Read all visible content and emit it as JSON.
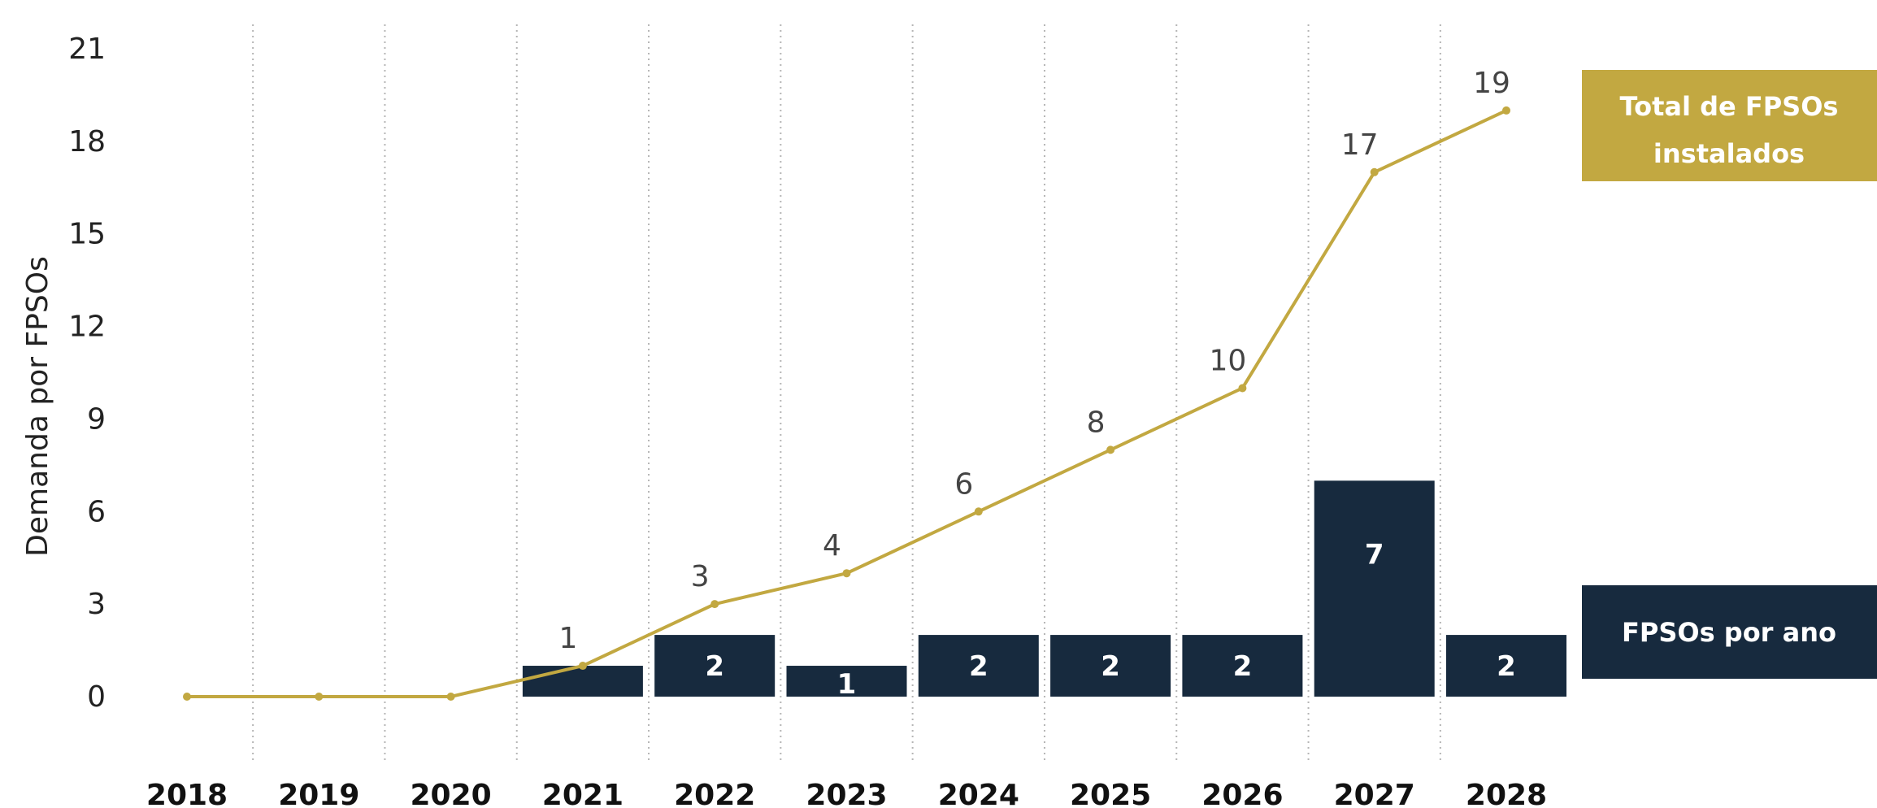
{
  "chart_data": {
    "type": "bar",
    "categories": [
      "2018",
      "2019",
      "2020",
      "2021",
      "2022",
      "2023",
      "2024",
      "2025",
      "2026",
      "2027",
      "2028"
    ],
    "ylabel": "Demanda por FPSOs",
    "ylim": [
      -2,
      21
    ],
    "yticks": [
      0,
      3,
      6,
      9,
      12,
      15,
      18,
      21
    ],
    "grid": "vertical-dotted",
    "series": [
      {
        "type": "bar",
        "name": "FPSOs por ano",
        "color": "#172a3e",
        "values": [
          0,
          0,
          0,
          1,
          2,
          1,
          2,
          2,
          2,
          7,
          2
        ],
        "labels": [
          "",
          "",
          "",
          "",
          "2",
          "1",
          "2",
          "2",
          "2",
          "7",
          "2"
        ]
      },
      {
        "type": "line",
        "name": "Total de FPSOs instalados",
        "color": "#c2a841",
        "values": [
          0,
          0,
          0,
          1,
          3,
          4,
          6,
          8,
          10,
          17,
          19
        ],
        "labels": [
          "",
          "",
          "",
          "1",
          "3",
          "4",
          "6",
          "8",
          "10",
          "17",
          "19"
        ]
      }
    ],
    "legend": {
      "placement": "right",
      "line_label_lines": [
        "Total de FPSOs",
        "instalados"
      ],
      "bar_label": "FPSOs por ano"
    }
  }
}
